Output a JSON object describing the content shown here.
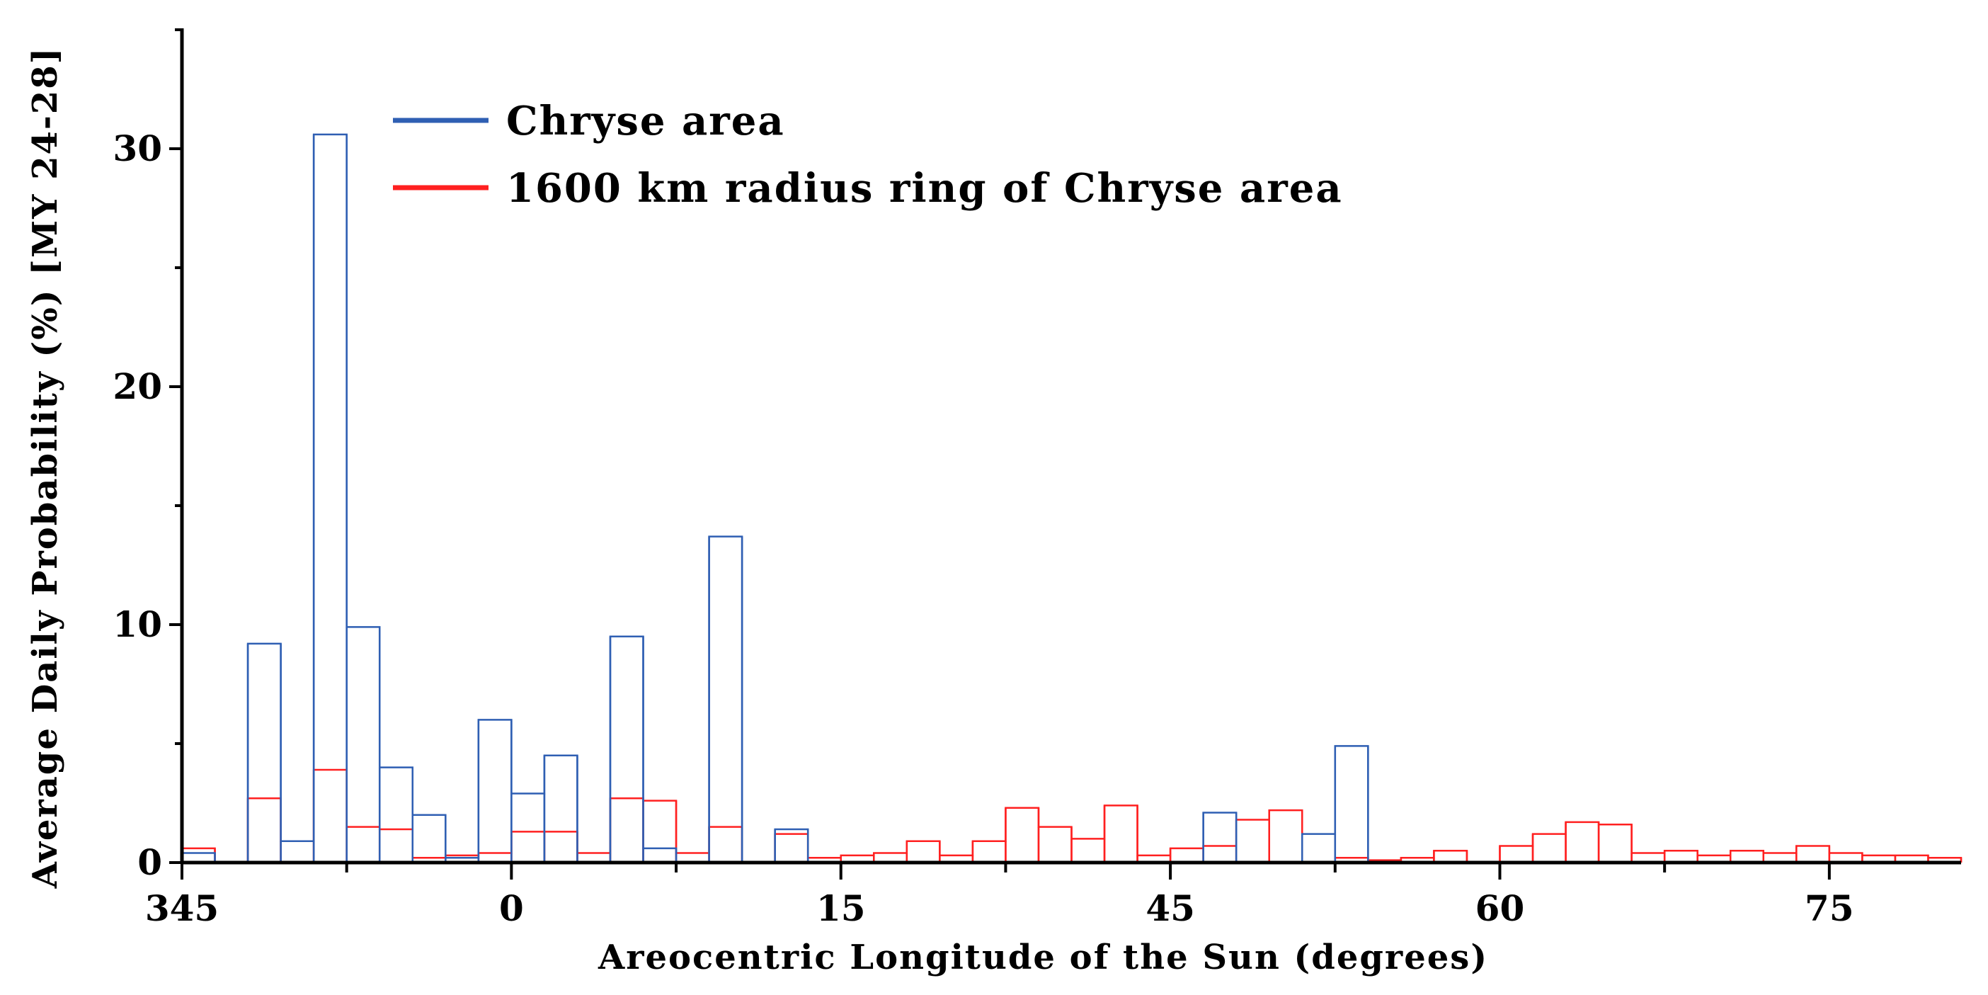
{
  "chart_data": {
    "type": "histogram-step",
    "xlabel": "Areocentric Longitude of the Sun (degrees)",
    "ylabel": "Average Daily Probability (%) [MY 24-28]",
    "ylim": [
      0,
      35
    ],
    "y_ticks": [
      0,
      10,
      20,
      30
    ],
    "x_tick_labels": [
      "345",
      "0",
      "15",
      "45",
      "60",
      "75"
    ],
    "x_tick_bin_index": [
      0,
      10,
      20,
      30,
      40,
      50
    ],
    "bin_count": 54,
    "legend_position": "top-left",
    "colors": {
      "chryse": "#2f5fb3",
      "ring": "#ff2020"
    },
    "series": [
      {
        "name": "Chryse area",
        "values": [
          0.4,
          0,
          9.2,
          0.9,
          30.6,
          9.9,
          4.0,
          2.0,
          0.2,
          6.0,
          2.9,
          4.5,
          0,
          9.5,
          0.6,
          0,
          13.7,
          0,
          1.4,
          0,
          0,
          0,
          0,
          0,
          0,
          0,
          0,
          0,
          0,
          0,
          0,
          2.1,
          0,
          0,
          1.2,
          4.9,
          0,
          0,
          0,
          0,
          0,
          0,
          0,
          0,
          0,
          0,
          0,
          0,
          0,
          0,
          0,
          0,
          0,
          0
        ]
      },
      {
        "name": "1600 km radius ring of Chryse area",
        "values": [
          0.6,
          0,
          2.7,
          0,
          3.9,
          1.5,
          1.4,
          0.2,
          0.3,
          0.4,
          1.3,
          1.3,
          0.4,
          2.7,
          2.6,
          0.4,
          1.5,
          0,
          1.2,
          0.2,
          0.3,
          0.4,
          0.9,
          0.3,
          0.9,
          2.3,
          1.5,
          1.0,
          2.4,
          0.3,
          0.6,
          0.7,
          1.8,
          2.2,
          0,
          0.2,
          0.1,
          0.2,
          0.5,
          0,
          0.7,
          1.2,
          1.7,
          1.6,
          0.4,
          0.5,
          0.3,
          0.5,
          0.4,
          0.7,
          0.4,
          0.3,
          0.3,
          0.2
        ]
      }
    ]
  }
}
